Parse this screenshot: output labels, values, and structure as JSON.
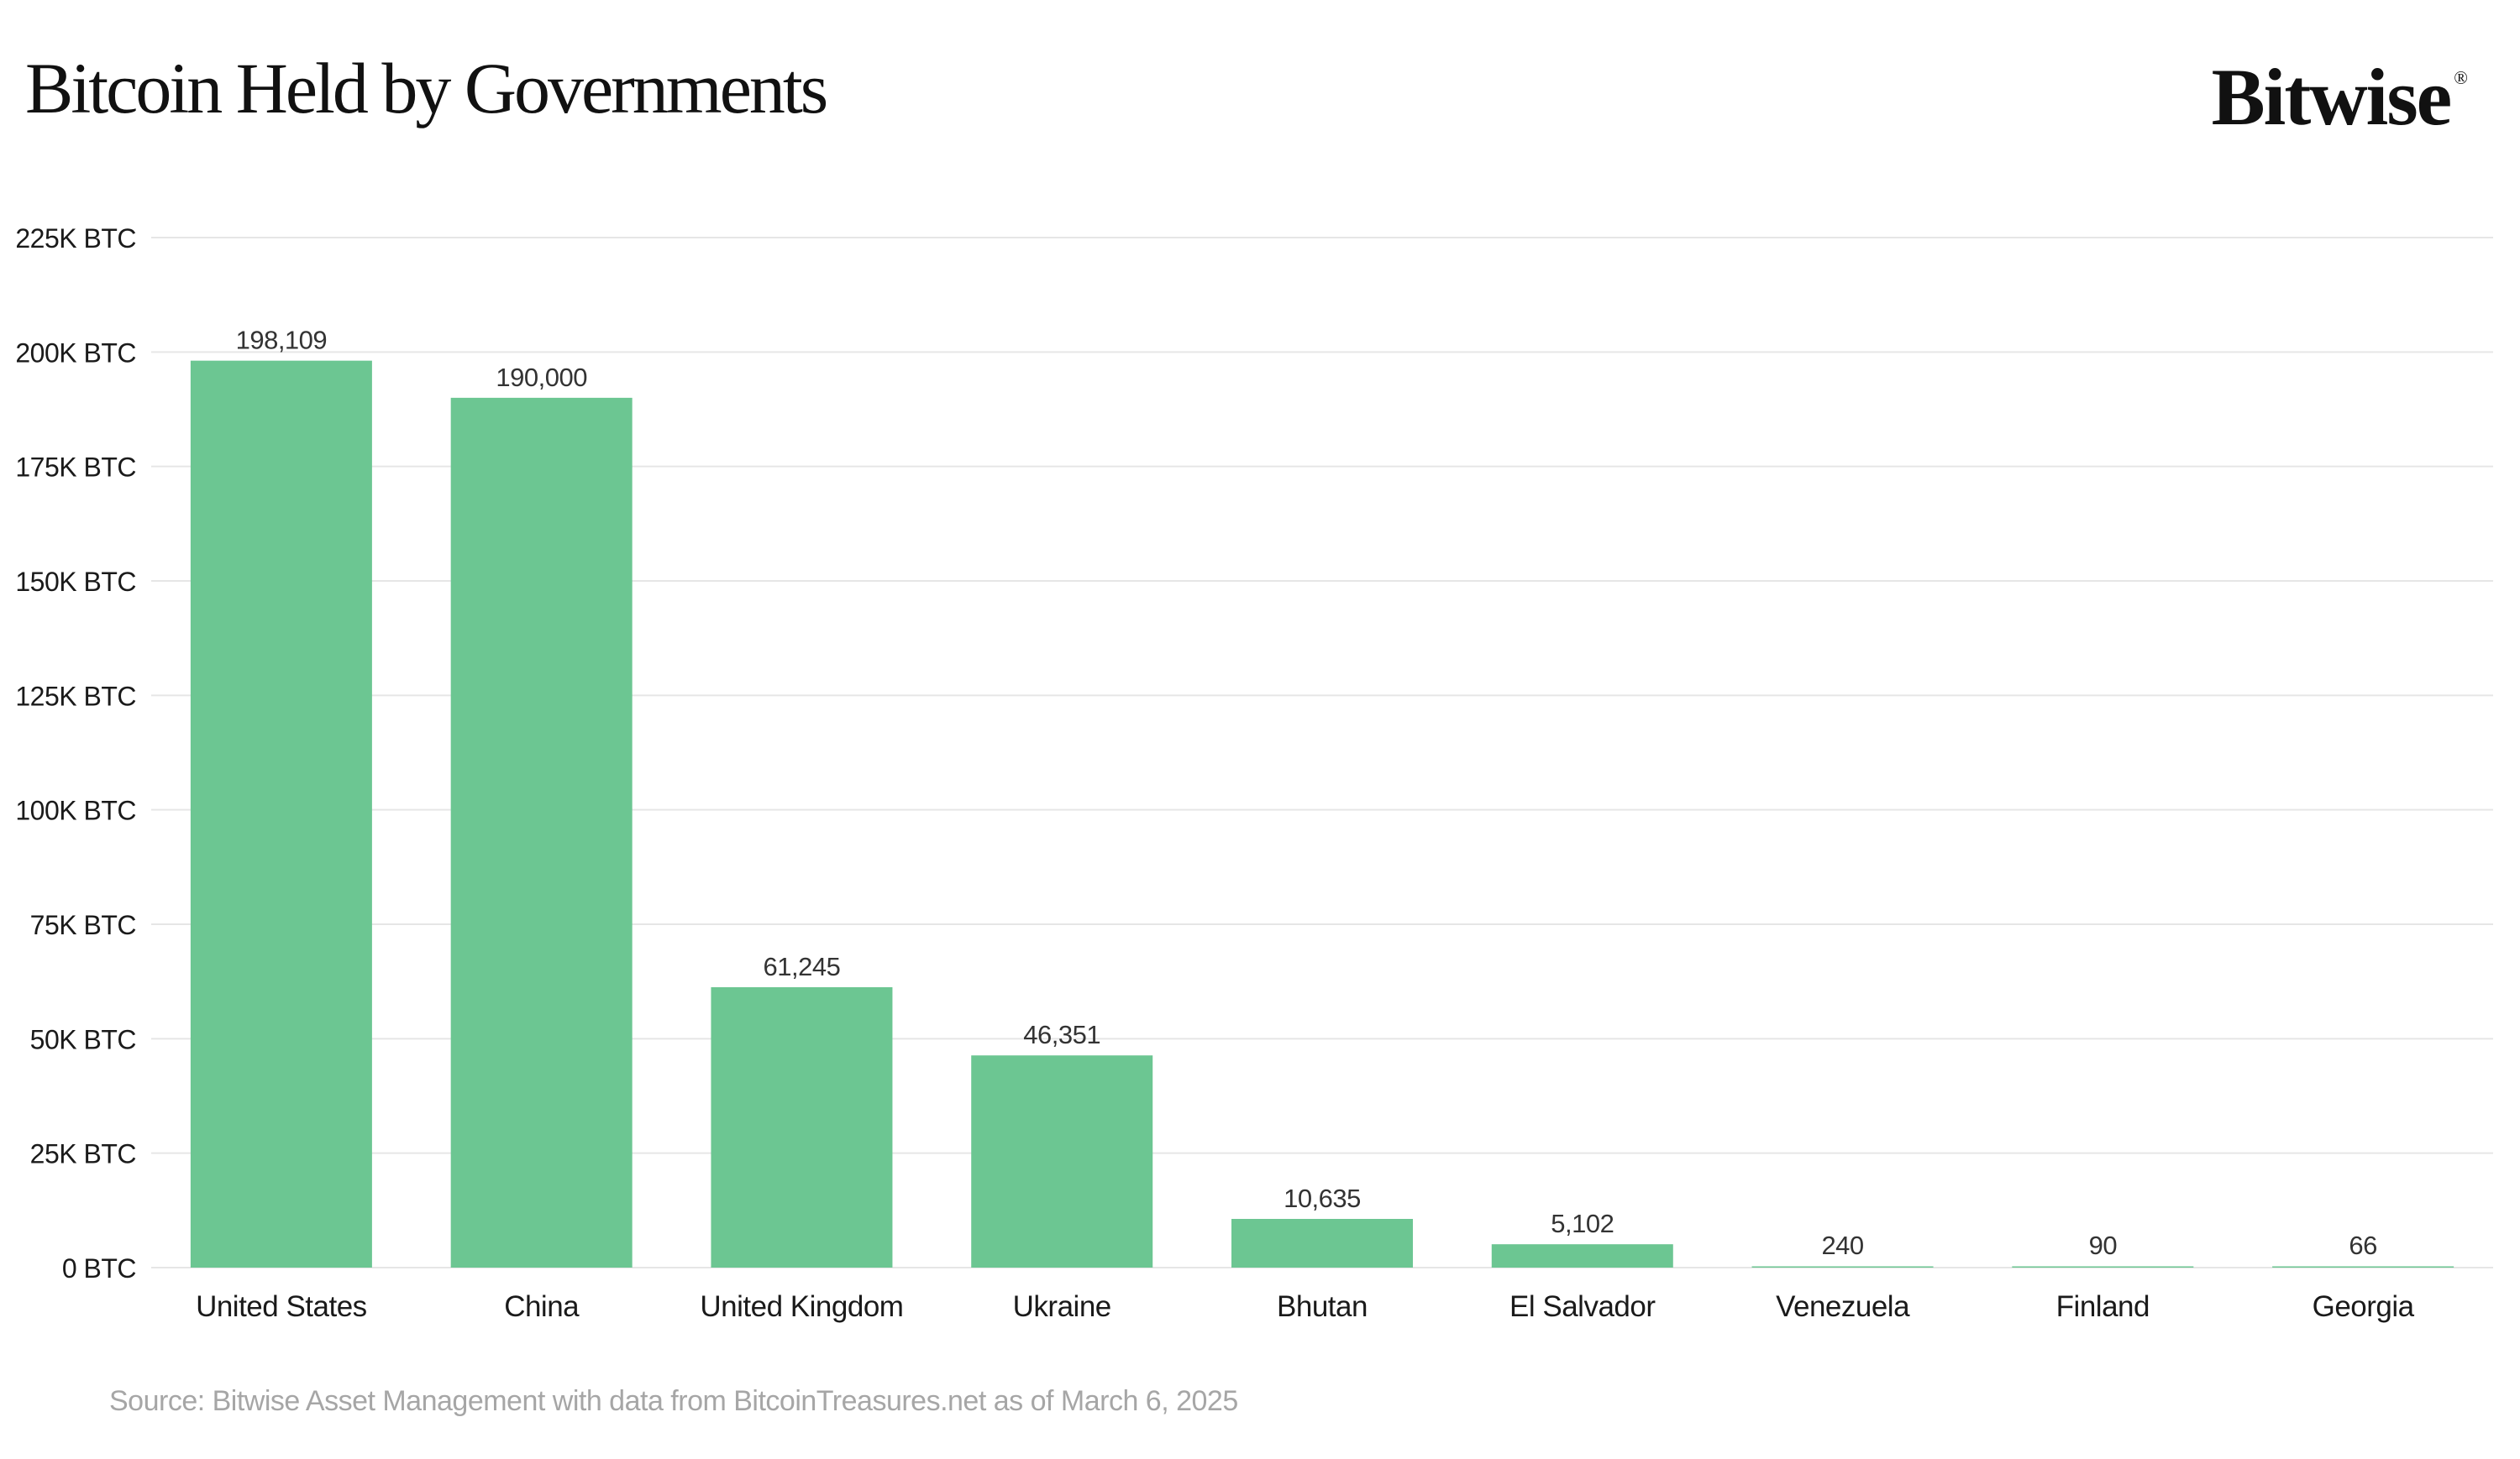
{
  "header": {
    "title": "Bitcoin Held by Governments",
    "logo_text": "Bitwise",
    "logo_mark": "®"
  },
  "footer": {
    "source": "Source: Bitwise Asset Management with data from BitcoinTreasures.net as of March 6, 2025"
  },
  "colors": {
    "bar": "#6cc692",
    "grid": "#e6e6e6",
    "tick_text": "#1a1a1a",
    "data_label": "#333333"
  },
  "chart_data": {
    "type": "bar",
    "title": "Bitcoin Held by Governments",
    "xlabel": "",
    "ylabel": "",
    "categories": [
      "United States",
      "China",
      "United Kingdom",
      "Ukraine",
      "Bhutan",
      "El Salvador",
      "Venezuela",
      "Finland",
      "Georgia"
    ],
    "values": [
      198109,
      190000,
      61245,
      46351,
      10635,
      5102,
      240,
      90,
      66
    ],
    "data_labels": [
      "198,109",
      "190,000",
      "61,245",
      "46,351",
      "10,635",
      "5,102",
      "240",
      "90",
      "66"
    ],
    "y_ticks": [
      0,
      25000,
      50000,
      75000,
      100000,
      125000,
      150000,
      175000,
      200000,
      225000
    ],
    "y_tick_labels": [
      "0 BTC",
      "25K BTC",
      "50K BTC",
      "75K BTC",
      "100K BTC",
      "125K BTC",
      "150K BTC",
      "175K BTC",
      "200K BTC",
      "225K BTC"
    ],
    "ylim": [
      0,
      225000
    ],
    "grid": true,
    "legend": "none"
  }
}
